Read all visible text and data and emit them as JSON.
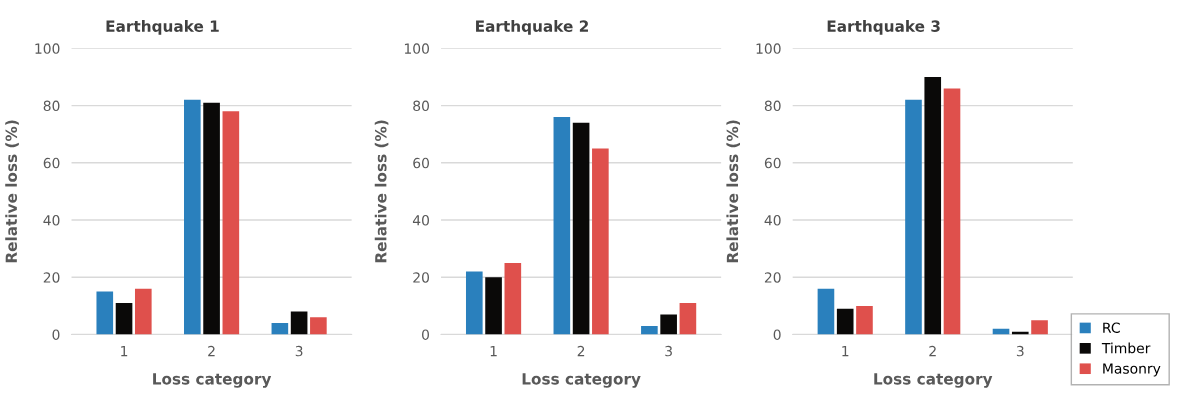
{
  "chart_data": [
    {
      "type": "bar",
      "title": "Earthquake 1",
      "xlabel": "Loss category",
      "ylabel": "Relative loss (%)",
      "categories": [
        "1",
        "2",
        "3"
      ],
      "ylim": [
        0,
        100
      ],
      "yticks": [
        0,
        20,
        40,
        60,
        80,
        100
      ],
      "grid": "y",
      "series": [
        {
          "color": "#2a80bd",
          "values": [
            15,
            82,
            4
          ]
        },
        {
          "color": "#0a0908",
          "values": [
            11,
            81,
            8
          ]
        },
        {
          "color": "#df504c",
          "values": [
            16,
            78,
            6
          ]
        }
      ]
    },
    {
      "type": "bar",
      "title": "Earthquake 2",
      "xlabel": "Loss category",
      "ylabel": "Relative loss (%)",
      "categories": [
        "1",
        "2",
        "3"
      ],
      "ylim": [
        0,
        100
      ],
      "yticks": [
        0,
        20,
        40,
        60,
        80,
        100
      ],
      "grid": "y",
      "series": [
        {
          "color": "#2a80bd",
          "values": [
            22,
            76,
            3
          ]
        },
        {
          "color": "#0a0908",
          "values": [
            20,
            74,
            7
          ]
        },
        {
          "color": "#df504c",
          "values": [
            25,
            65,
            11
          ]
        }
      ]
    },
    {
      "type": "bar",
      "title": "Earthquake 3",
      "xlabel": "Loss category",
      "ylabel": "Relative loss (%)",
      "categories": [
        "1",
        "2",
        "3"
      ],
      "ylim": [
        0,
        100
      ],
      "yticks": [
        0,
        20,
        40,
        60,
        80,
        100
      ],
      "grid": "y",
      "legend": "bottom right",
      "series": [
        {
          "name": "RC",
          "color": "#2a80bd",
          "values": [
            16,
            82,
            2
          ]
        },
        {
          "name": "Timber",
          "color": "#0a0908",
          "values": [
            9,
            90,
            1
          ]
        },
        {
          "name": "Masonry",
          "color": "#df504c",
          "values": [
            10,
            86,
            5
          ]
        }
      ]
    }
  ]
}
